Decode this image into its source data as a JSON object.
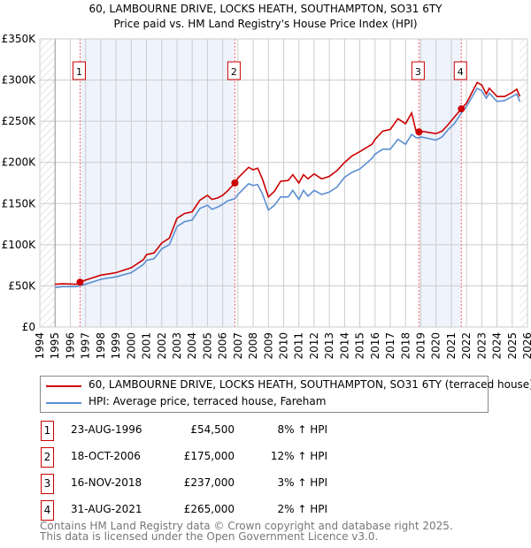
{
  "chart_data": {
    "type": "line",
    "title": "60, LAMBOURNE DRIVE, LOCKS HEATH, SOUTHAMPTON, SO31 6TY",
    "subtitle": "Price paid vs. HM Land Registry's House Price Index (HPI)",
    "xlim": [
      1994,
      2026
    ],
    "ylim": [
      0,
      350000
    ],
    "x_ticks": [
      "1994",
      "1995",
      "1996",
      "1997",
      "1998",
      "1999",
      "2000",
      "2001",
      "2002",
      "2003",
      "2004",
      "2005",
      "2006",
      "2007",
      "2008",
      "2009",
      "2010",
      "2011",
      "2012",
      "2013",
      "2014",
      "2015",
      "2016",
      "2017",
      "2018",
      "2019",
      "2020",
      "2021",
      "2022",
      "2023",
      "2024",
      "2025",
      "2026"
    ],
    "y_ticks": [
      {
        "v": 0,
        "label": "£0"
      },
      {
        "v": 50000,
        "label": "£50K"
      },
      {
        "v": 100000,
        "label": "£100K"
      },
      {
        "v": 150000,
        "label": "£150K"
      },
      {
        "v": 200000,
        "label": "£200K"
      },
      {
        "v": 250000,
        "label": "£250K"
      },
      {
        "v": 300000,
        "label": "£300K"
      },
      {
        "v": 350000,
        "label": "£350K"
      }
    ],
    "grid": true,
    "colors": {
      "property": "#cc0000",
      "hpi": "#5b8fd0",
      "shade": "#eef3fc"
    },
    "series": [
      {
        "name": "60, LAMBOURNE DRIVE, LOCKS HEATH, SOUTHAMPTON, SO31 6TY (terraced house)",
        "x": [
          1995,
          1995.5,
          1996.4,
          1996.64,
          1997,
          1998,
          1999,
          2000,
          2000.8,
          2001,
          2001.5,
          2002,
          2002.5,
          2003,
          2003.5,
          2004,
          2004.5,
          2005,
          2005.3,
          2005.7,
          2006,
          2006.3,
          2006.8,
          2007,
          2007.7,
          2008,
          2008.3,
          2008.6,
          2009,
          2009.4,
          2009.8,
          2010.3,
          2010.6,
          2011,
          2011.3,
          2011.6,
          2012,
          2012.5,
          2013,
          2013.5,
          2014,
          2014.5,
          2015,
          2015.8,
          2016,
          2016.5,
          2017,
          2017.5,
          2018,
          2018.4,
          2018.7,
          2018.88,
          2019,
          2020,
          2020.4,
          2020.8,
          2021.2,
          2021.66,
          2022,
          2022.7,
          2023,
          2023.3,
          2023.5,
          2024,
          2024.5,
          2025,
          2025.3,
          2025.5
        ],
        "y": [
          52000,
          52500,
          52000,
          54500,
          57000,
          63000,
          66000,
          72000,
          82000,
          88000,
          90000,
          102000,
          108000,
          132000,
          138000,
          140000,
          154000,
          160000,
          155000,
          157000,
          160000,
          165000,
          175000,
          181000,
          194000,
          191000,
          193000,
          180000,
          158000,
          165000,
          177000,
          178000,
          185000,
          175000,
          185000,
          180000,
          186000,
          180000,
          183000,
          190000,
          200000,
          208000,
          213000,
          222000,
          228000,
          238000,
          240000,
          253000,
          247000,
          260000,
          237000,
          237000,
          238000,
          235000,
          238000,
          246000,
          255000,
          265000,
          272000,
          297000,
          294000,
          283000,
          290000,
          280000,
          280000,
          285000,
          289000,
          280000
        ]
      },
      {
        "name": "HPI: Average price, terraced house, Fareham",
        "x": [
          1995,
          1995.5,
          1996.4,
          1996.64,
          1997,
          1998,
          1999,
          2000,
          2000.8,
          2001,
          2001.5,
          2002,
          2002.5,
          2003,
          2003.5,
          2004,
          2004.5,
          2005,
          2005.3,
          2005.7,
          2006,
          2006.3,
          2006.8,
          2007,
          2007.7,
          2008,
          2008.3,
          2008.6,
          2009,
          2009.4,
          2009.8,
          2010.3,
          2010.6,
          2011,
          2011.3,
          2011.6,
          2012,
          2012.5,
          2013,
          2013.5,
          2014,
          2014.5,
          2015,
          2015.8,
          2016,
          2016.5,
          2017,
          2017.5,
          2018,
          2018.4,
          2018.7,
          2018.88,
          2019,
          2020,
          2020.4,
          2020.8,
          2021.2,
          2021.66,
          2022,
          2022.7,
          2023,
          2023.3,
          2023.5,
          2024,
          2024.5,
          2025,
          2025.3,
          2025.5
        ],
        "y": [
          48000,
          49000,
          49000,
          50500,
          52000,
          58000,
          61000,
          66000,
          76000,
          81000,
          83000,
          95000,
          100000,
          122000,
          128000,
          130000,
          144000,
          148000,
          143000,
          146000,
          149000,
          153000,
          156000,
          161000,
          174000,
          172000,
          173000,
          162000,
          142000,
          148000,
          158000,
          158000,
          166000,
          155000,
          166000,
          159000,
          166000,
          161000,
          164000,
          170000,
          182000,
          188000,
          192000,
          205000,
          210000,
          216000,
          216000,
          228000,
          222000,
          234000,
          230000,
          230000,
          231000,
          227000,
          231000,
          240000,
          247000,
          260000,
          268000,
          290000,
          287000,
          278000,
          284000,
          274000,
          275000,
          280000,
          283000,
          274000
        ]
      }
    ],
    "shaded_ranges": [
      [
        1996.64,
        2006.8
      ],
      [
        2018.88,
        2021.66
      ]
    ],
    "hatched_ranges": [
      [
        1994,
        1995
      ],
      [
        2025.5,
        2026
      ]
    ],
    "markers": [
      {
        "label": "1",
        "x": 1996.64,
        "y": 54500
      },
      {
        "label": "2",
        "x": 2006.8,
        "y": 175000
      },
      {
        "label": "3",
        "x": 2018.88,
        "y": 237000
      },
      {
        "label": "4",
        "x": 2021.66,
        "y": 265000
      }
    ],
    "legend": {
      "placement": "below",
      "entries": [
        "60, LAMBOURNE DRIVE, LOCKS HEATH, SOUTHAMPTON, SO31 6TY (terraced house)",
        "HPI: Average price, terraced house, Fareham"
      ]
    }
  },
  "sales": [
    {
      "num": "1",
      "date": "23-AUG-1996",
      "price": "£54,500",
      "hpi": "8% ↑ HPI"
    },
    {
      "num": "2",
      "date": "18-OCT-2006",
      "price": "£175,000",
      "hpi": "12% ↑ HPI"
    },
    {
      "num": "3",
      "date": "16-NOV-2018",
      "price": "£237,000",
      "hpi": "3% ↑ HPI"
    },
    {
      "num": "4",
      "date": "31-AUG-2021",
      "price": "£265,000",
      "hpi": "2% ↑ HPI"
    }
  ],
  "footer": {
    "line1": "Contains HM Land Registry data © Crown copyright and database right 2025.",
    "line2": "This data is licensed under the Open Government Licence v3.0."
  }
}
